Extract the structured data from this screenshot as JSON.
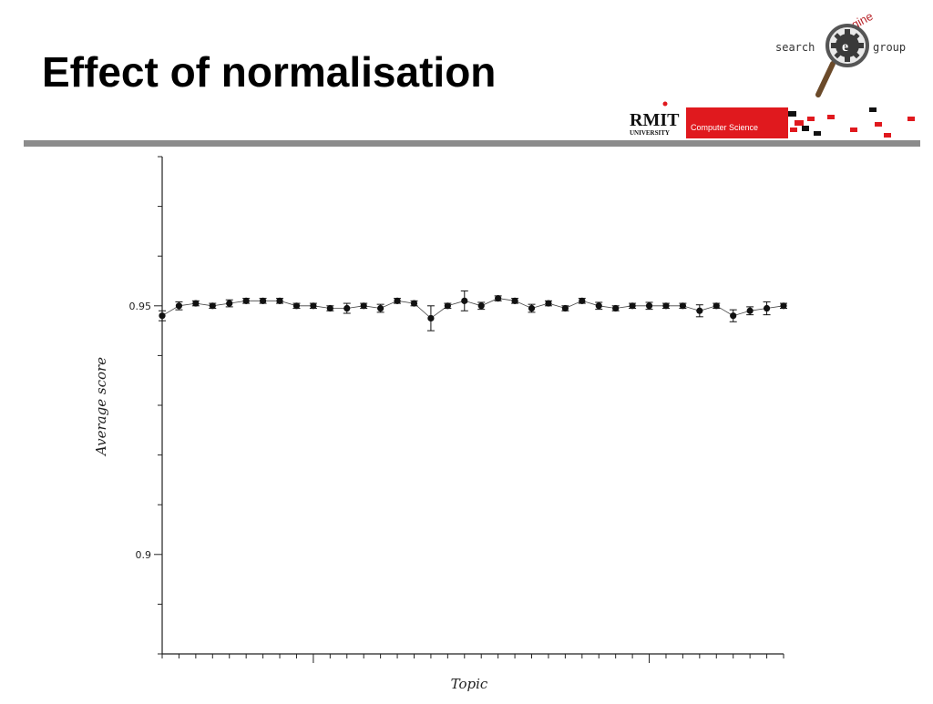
{
  "slide": {
    "title": "Effect of normalisation"
  },
  "logos": {
    "search_engine_group": {
      "word_left": "search",
      "word_top": "engine",
      "word_right": "group",
      "accent_color": "#b8242a"
    },
    "rmit": {
      "name": "RMIT",
      "subtitle": "UNIVERSITY",
      "department": "Computer Science",
      "accent_color": "#e0191e"
    }
  },
  "chart_data": {
    "type": "scatter",
    "title": "",
    "xlabel": "Topic",
    "ylabel": "Average score",
    "ylim": [
      0.88,
      0.98
    ],
    "y_major_ticks": [
      0.9,
      0.95
    ],
    "y_tick_labels": [
      "0.9",
      "0.95"
    ],
    "grid": false,
    "legend": "none",
    "error_bars": true,
    "x": [
      1,
      2,
      3,
      4,
      5,
      6,
      7,
      8,
      9,
      10,
      11,
      12,
      13,
      14,
      15,
      16,
      17,
      18,
      19,
      20,
      21,
      22,
      23,
      24,
      25,
      26,
      27,
      28,
      29,
      30,
      31,
      32,
      33,
      34,
      35,
      36,
      37,
      38
    ],
    "series": [
      {
        "values": [
          0.948,
          0.95,
          0.9505,
          0.95,
          0.9505,
          0.951,
          0.951,
          0.951,
          0.95,
          0.95,
          0.9495,
          0.9495,
          0.95,
          0.9495,
          0.951,
          0.9505,
          0.9475,
          0.95,
          0.951,
          0.95,
          0.9515,
          0.951,
          0.9495,
          0.9505,
          0.9495,
          0.951,
          0.95,
          0.9495,
          0.95,
          0.95,
          0.95,
          0.95,
          0.949,
          0.95,
          0.948,
          0.949,
          0.9495,
          0.95
        ],
        "errors": [
          0.001,
          0.0008,
          0.0005,
          0.0005,
          0.0007,
          0.0005,
          0.0005,
          0.0005,
          0.0005,
          0.0005,
          0.0005,
          0.001,
          0.0005,
          0.0008,
          0.0005,
          0.0005,
          0.0025,
          0.0005,
          0.002,
          0.0007,
          0.0005,
          0.0005,
          0.0008,
          0.0005,
          0.0005,
          0.0005,
          0.0007,
          0.0005,
          0.0005,
          0.0007,
          0.0005,
          0.0005,
          0.0012,
          0.0005,
          0.0012,
          0.0008,
          0.0013,
          0.0005
        ]
      }
    ]
  }
}
